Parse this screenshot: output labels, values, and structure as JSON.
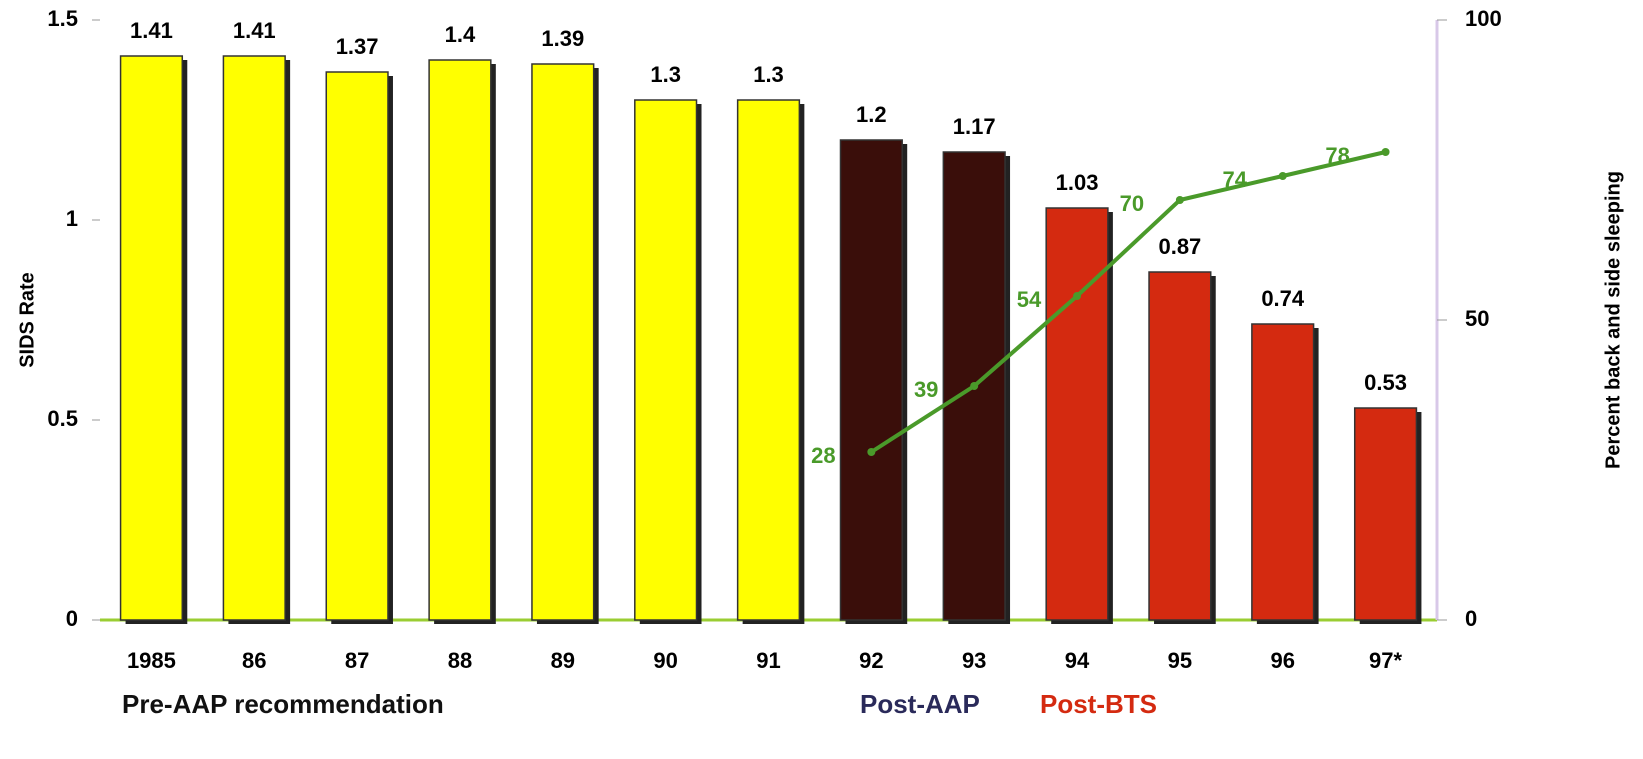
{
  "chart_data": {
    "type": "bar",
    "categories": [
      "1985",
      "86",
      "87",
      "88",
      "89",
      "90",
      "91",
      "92",
      "93",
      "94",
      "95",
      "96",
      "97*"
    ],
    "series": [
      {
        "name": "SIDS Rate",
        "type": "bar",
        "colors": [
          "#ffff00",
          "#ffff00",
          "#ffff00",
          "#ffff00",
          "#ffff00",
          "#ffff00",
          "#ffff00",
          "#3a0e0a",
          "#3a0e0a",
          "#d42a10",
          "#d42a10",
          "#d42a10",
          "#d42a10"
        ],
        "values": [
          1.41,
          1.41,
          1.37,
          1.4,
          1.39,
          1.3,
          1.3,
          1.2,
          1.17,
          1.03,
          0.87,
          0.74,
          0.53
        ]
      },
      {
        "name": "Percent back and side sleeping",
        "type": "line",
        "axis": "y2",
        "color": "#4a9a2a",
        "values": [
          null,
          null,
          null,
          null,
          null,
          null,
          null,
          28,
          39,
          54,
          70,
          74,
          78
        ]
      }
    ],
    "y_label": "SIDS Rate",
    "y2_label": "Percent back and side sleeping",
    "ylim": [
      0,
      1.5
    ],
    "yticks": [
      0,
      0.5,
      1,
      1.5
    ],
    "y2lim": [
      0,
      100
    ],
    "y2ticks": [
      0,
      50,
      100
    ],
    "annotations": [
      {
        "text": "Pre-AAP recommendation",
        "color": "#111111"
      },
      {
        "text": "Post-AAP",
        "color": "#2a2a5a"
      },
      {
        "text": "Post-BTS",
        "color": "#d42a10"
      }
    ]
  }
}
